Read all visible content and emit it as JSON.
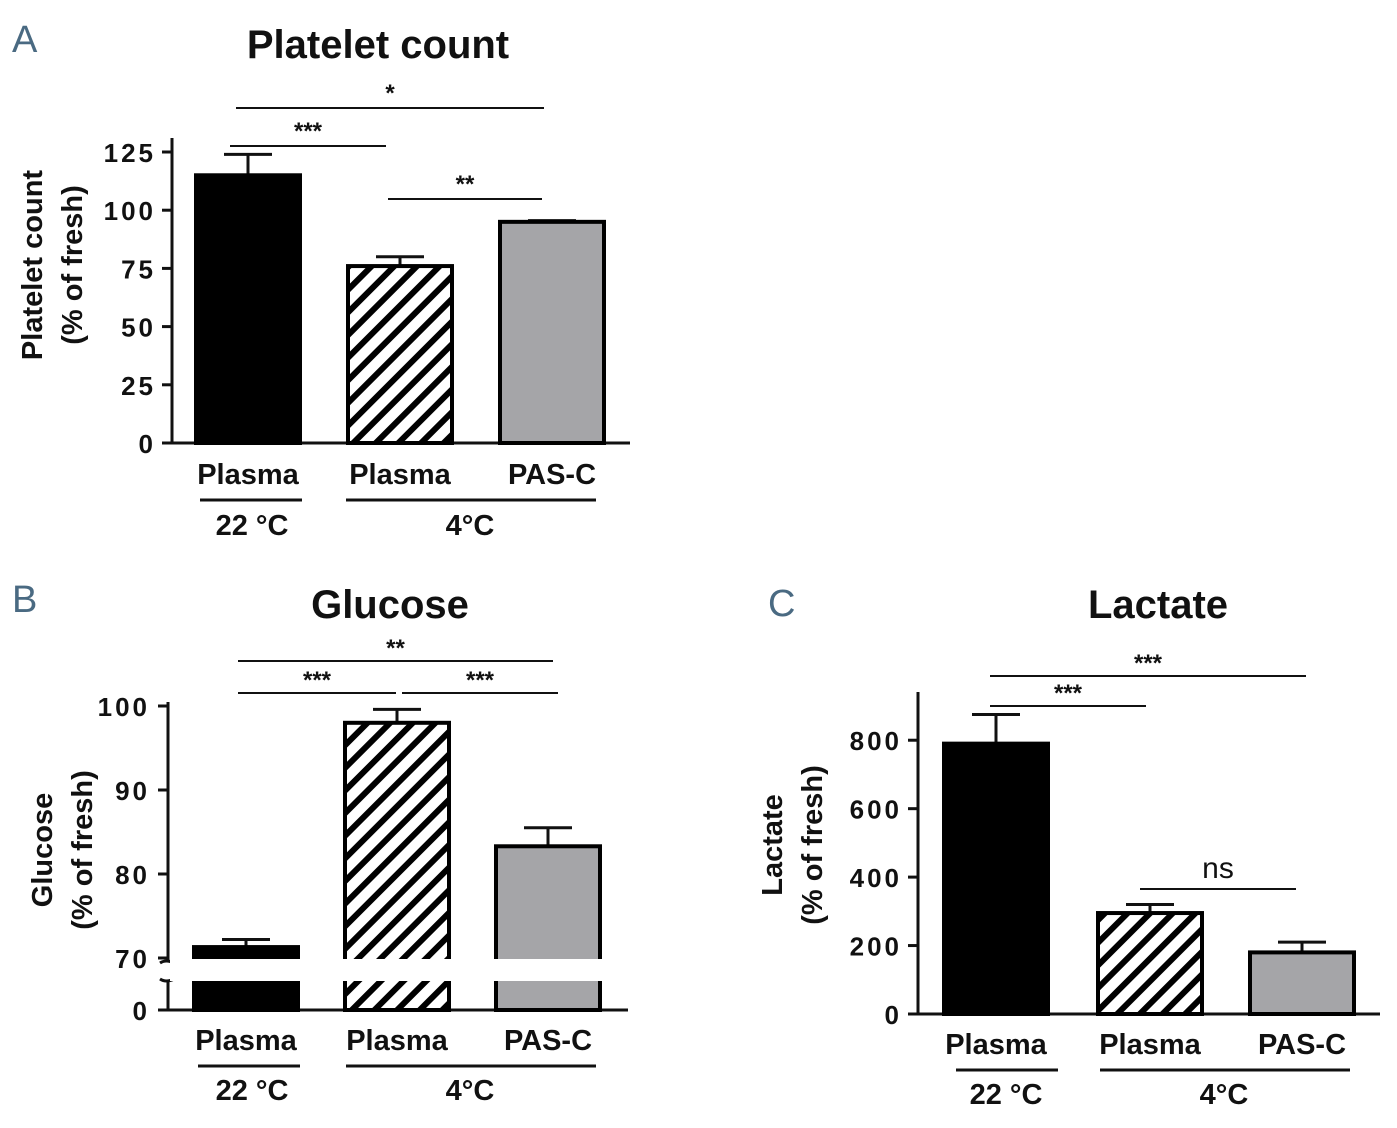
{
  "panels": {
    "A": {
      "letter": "A"
    },
    "B": {
      "letter": "B"
    },
    "C": {
      "letter": "C"
    }
  },
  "colors": {
    "black_bar": "#000000",
    "gray_bar": "#a5a5a8",
    "axis": "#111111",
    "hatch": "#000000"
  },
  "chart_data": [
    {
      "type": "bar",
      "title": "Platelet count",
      "ylabel": [
        "Platelet count",
        "(% of fresh)"
      ],
      "categories": [
        "Plasma",
        "Plasma",
        "PAS-C"
      ],
      "groups": [
        {
          "label": "22 °C",
          "members": [
            0
          ]
        },
        {
          "label": "4°C",
          "members": [
            1,
            2
          ]
        }
      ],
      "values": [
        115,
        76,
        95
      ],
      "errors": [
        9,
        4,
        0.5
      ],
      "fills": [
        "solid-black",
        "hatched",
        "gray"
      ],
      "ylim": [
        0,
        125
      ],
      "yticks": [
        "0",
        "25",
        "50",
        "75",
        "100",
        "125"
      ],
      "significance": [
        {
          "from": 0,
          "to": 2,
          "label": "*"
        },
        {
          "from": 0,
          "to": 1,
          "label": "***"
        },
        {
          "from": 1,
          "to": 2,
          "label": "**"
        }
      ]
    },
    {
      "type": "bar",
      "title": "Glucose",
      "ylabel": [
        "Glucose",
        "(% of fresh)"
      ],
      "categories": [
        "Plasma",
        "Plasma",
        "PAS-C"
      ],
      "groups": [
        {
          "label": "22 °C",
          "members": [
            0
          ]
        },
        {
          "label": "4°C",
          "members": [
            1,
            2
          ]
        }
      ],
      "values": [
        71.3,
        98,
        83.3
      ],
      "errors": [
        0.9,
        1.6,
        2.2
      ],
      "fills": [
        "solid-black",
        "hatched",
        "gray"
      ],
      "ylim": [
        0,
        100
      ],
      "axis_break": [
        0,
        70
      ],
      "yticks": [
        "0",
        "70",
        "80",
        "90",
        "100"
      ],
      "significance": [
        {
          "from": 0,
          "to": 2,
          "label": "**"
        },
        {
          "from": 0,
          "to": 1,
          "label": "***"
        },
        {
          "from": 1,
          "to": 2,
          "label": "***"
        }
      ]
    },
    {
      "type": "bar",
      "title": "Lactate",
      "ylabel": [
        "Lactate",
        "(% of fresh)"
      ],
      "categories": [
        "Plasma",
        "Plasma",
        "PAS-C"
      ],
      "groups": [
        {
          "label": "22 °C",
          "members": [
            0
          ]
        },
        {
          "label": "4°C",
          "members": [
            1,
            2
          ]
        }
      ],
      "values": [
        790,
        295,
        180
      ],
      "errors": [
        85,
        25,
        30
      ],
      "fills": [
        "solid-black",
        "hatched",
        "gray"
      ],
      "ylim": [
        0,
        900
      ],
      "yticks": [
        "0",
        "200",
        "400",
        "600",
        "800"
      ],
      "significance": [
        {
          "from": 0,
          "to": 2,
          "label": "***"
        },
        {
          "from": 0,
          "to": 1,
          "label": "***"
        },
        {
          "from": 1,
          "to": 2,
          "label": "ns"
        }
      ]
    }
  ]
}
